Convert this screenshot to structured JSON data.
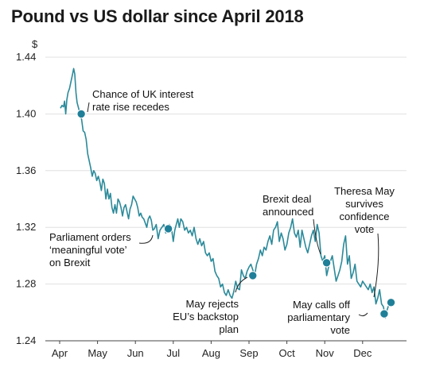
{
  "chart_data": {
    "type": "line",
    "title": "Pound vs US dollar since April 2018",
    "ylabel": "$",
    "xlabel": "",
    "ylim": [
      1.24,
      1.44
    ],
    "yticks": [
      1.44,
      1.4,
      1.36,
      1.32,
      1.28,
      1.24
    ],
    "ytick_labels": [
      "1.44",
      "1.40",
      "1.36",
      "1.32",
      "1.28",
      "1.24"
    ],
    "xtick_labels": [
      "Apr",
      "May",
      "Jun",
      "Jul",
      "Aug",
      "Sep",
      "Oct",
      "Nov",
      "Dec"
    ],
    "xtick_months": [
      0,
      1,
      2,
      3,
      4,
      5,
      6,
      7,
      8
    ],
    "grid": true,
    "line_color": "#2b8a9a",
    "marker_color": "#1f7f98",
    "series": [
      {
        "values": [
          [
            0.02,
            1.404
          ],
          [
            0.06,
            1.406
          ],
          [
            0.1,
            1.405
          ],
          [
            0.13,
            1.409
          ],
          [
            0.16,
            1.4
          ],
          [
            0.19,
            1.41
          ],
          [
            0.22,
            1.415
          ],
          [
            0.26,
            1.418
          ],
          [
            0.3,
            1.423
          ],
          [
            0.34,
            1.428
          ],
          [
            0.37,
            1.432
          ],
          [
            0.4,
            1.428
          ],
          [
            0.43,
            1.415
          ],
          [
            0.46,
            1.408
          ],
          [
            0.5,
            1.404
          ],
          [
            0.54,
            1.4
          ],
          [
            0.58,
            1.396
          ],
          [
            0.62,
            1.388
          ],
          [
            0.66,
            1.387
          ],
          [
            0.7,
            1.382
          ],
          [
            0.74,
            1.372
          ],
          [
            0.78,
            1.367
          ],
          [
            0.82,
            1.362
          ],
          [
            0.86,
            1.356
          ],
          [
            0.9,
            1.36
          ],
          [
            0.94,
            1.358
          ],
          [
            0.98,
            1.353
          ],
          [
            1.02,
            1.356
          ],
          [
            1.06,
            1.352
          ],
          [
            1.1,
            1.346
          ],
          [
            1.14,
            1.354
          ],
          [
            1.18,
            1.351
          ],
          [
            1.22,
            1.34
          ],
          [
            1.26,
            1.347
          ],
          [
            1.3,
            1.34
          ],
          [
            1.34,
            1.344
          ],
          [
            1.38,
            1.334
          ],
          [
            1.42,
            1.33
          ],
          [
            1.46,
            1.336
          ],
          [
            1.5,
            1.33
          ],
          [
            1.54,
            1.34
          ],
          [
            1.58,
            1.338
          ],
          [
            1.62,
            1.334
          ],
          [
            1.66,
            1.328
          ],
          [
            1.7,
            1.334
          ],
          [
            1.74,
            1.336
          ],
          [
            1.78,
            1.331
          ],
          [
            1.82,
            1.326
          ],
          [
            1.86,
            1.333
          ],
          [
            1.9,
            1.336
          ],
          [
            1.94,
            1.342
          ],
          [
            1.98,
            1.34
          ],
          [
            2.02,
            1.338
          ],
          [
            2.06,
            1.334
          ],
          [
            2.1,
            1.328
          ],
          [
            2.14,
            1.33
          ],
          [
            2.18,
            1.327
          ],
          [
            2.22,
            1.326
          ],
          [
            2.26,
            1.323
          ],
          [
            2.3,
            1.32
          ],
          [
            2.34,
            1.326
          ],
          [
            2.38,
            1.328
          ],
          [
            2.42,
            1.325
          ],
          [
            2.46,
            1.318
          ],
          [
            2.5,
            1.319
          ],
          [
            2.55,
            1.322
          ],
          [
            2.6,
            1.312
          ],
          [
            2.65,
            1.318
          ],
          [
            2.7,
            1.32
          ],
          [
            2.75,
            1.322
          ],
          [
            2.8,
            1.316
          ],
          [
            2.85,
            1.318
          ],
          [
            2.9,
            1.322
          ],
          [
            2.95,
            1.32
          ],
          [
            3.0,
            1.31
          ],
          [
            3.04,
            1.318
          ],
          [
            3.08,
            1.322
          ],
          [
            3.12,
            1.326
          ],
          [
            3.16,
            1.32
          ],
          [
            3.2,
            1.326
          ],
          [
            3.25,
            1.324
          ],
          [
            3.3,
            1.318
          ],
          [
            3.35,
            1.32
          ],
          [
            3.4,
            1.316
          ],
          [
            3.45,
            1.318
          ],
          [
            3.5,
            1.314
          ],
          [
            3.55,
            1.32
          ],
          [
            3.6,
            1.312
          ],
          [
            3.65,
            1.308
          ],
          [
            3.7,
            1.312
          ],
          [
            3.75,
            1.307
          ],
          [
            3.8,
            1.31
          ],
          [
            3.85,
            1.302
          ],
          [
            3.9,
            1.3
          ],
          [
            3.95,
            1.302
          ],
          [
            4.0,
            1.296
          ],
          [
            4.05,
            1.298
          ],
          [
            4.1,
            1.289
          ],
          [
            4.15,
            1.286
          ],
          [
            4.2,
            1.284
          ],
          [
            4.25,
            1.278
          ],
          [
            4.3,
            1.28
          ],
          [
            4.35,
            1.274
          ],
          [
            4.4,
            1.272
          ],
          [
            4.45,
            1.276
          ],
          [
            4.5,
            1.272
          ],
          [
            4.55,
            1.27
          ],
          [
            4.6,
            1.275
          ],
          [
            4.65,
            1.282
          ],
          [
            4.7,
            1.277
          ],
          [
            4.75,
            1.276
          ],
          [
            4.8,
            1.29
          ],
          [
            4.85,
            1.286
          ],
          [
            4.9,
            1.284
          ],
          [
            4.95,
            1.289
          ],
          [
            5.0,
            1.292
          ],
          [
            5.05,
            1.294
          ],
          [
            5.1,
            1.29
          ],
          [
            5.15,
            1.286
          ],
          [
            5.2,
            1.294
          ],
          [
            5.25,
            1.298
          ],
          [
            5.3,
            1.304
          ],
          [
            5.35,
            1.3
          ],
          [
            5.4,
            1.306
          ],
          [
            5.45,
            1.304
          ],
          [
            5.5,
            1.31
          ],
          [
            5.55,
            1.314
          ],
          [
            5.6,
            1.308
          ],
          [
            5.65,
            1.318
          ],
          [
            5.7,
            1.32
          ],
          [
            5.75,
            1.324
          ],
          [
            5.8,
            1.31
          ],
          [
            5.85,
            1.316
          ],
          [
            5.9,
            1.312
          ],
          [
            5.95,
            1.304
          ],
          [
            6.0,
            1.308
          ],
          [
            6.05,
            1.316
          ],
          [
            6.1,
            1.32
          ],
          [
            6.15,
            1.326
          ],
          [
            6.2,
            1.316
          ],
          [
            6.25,
            1.313
          ],
          [
            6.3,
            1.318
          ],
          [
            6.35,
            1.306
          ],
          [
            6.4,
            1.318
          ],
          [
            6.45,
            1.312
          ],
          [
            6.5,
            1.306
          ],
          [
            6.55,
            1.302
          ],
          [
            6.6,
            1.308
          ],
          [
            6.65,
            1.314
          ],
          [
            6.7,
            1.318
          ],
          [
            6.75,
            1.31
          ],
          [
            6.8,
            1.322
          ],
          [
            6.85,
            1.316
          ],
          [
            6.9,
            1.3
          ],
          [
            6.95,
            1.296
          ],
          [
            7.0,
            1.3
          ],
          [
            7.05,
            1.286
          ],
          [
            7.1,
            1.292
          ],
          [
            7.15,
            1.296
          ],
          [
            7.2,
            1.3
          ],
          [
            7.25,
            1.291
          ],
          [
            7.3,
            1.282
          ],
          [
            7.35,
            1.286
          ],
          [
            7.4,
            1.29
          ],
          [
            7.45,
            1.296
          ],
          [
            7.5,
            1.308
          ],
          [
            7.55,
            1.314
          ],
          [
            7.6,
            1.294
          ],
          [
            7.65,
            1.3
          ],
          [
            7.7,
            1.284
          ],
          [
            7.75,
            1.288
          ],
          [
            7.8,
            1.294
          ],
          [
            7.85,
            1.282
          ],
          [
            7.9,
            1.28
          ],
          [
            7.95,
            1.278
          ],
          [
            8.0,
            1.282
          ],
          [
            8.05,
            1.28
          ],
          [
            8.1,
            1.278
          ],
          [
            8.15,
            1.276
          ],
          [
            8.2,
            1.28
          ],
          [
            8.25,
            1.274
          ],
          [
            8.3,
            1.278
          ],
          [
            8.35,
            1.266
          ],
          [
            8.4,
            1.27
          ],
          [
            8.45,
            1.276
          ],
          [
            8.5,
            1.266
          ],
          [
            8.55,
            1.264
          ],
          [
            8.6,
            1.256
          ],
          [
            8.65,
            1.262
          ],
          [
            8.7,
            1.266
          ],
          [
            8.75,
            1.267
          ]
        ]
      }
    ],
    "annotations": [
      {
        "text": [
          "Chance of UK interest",
          "rate rise recedes"
        ],
        "point": [
          0.57,
          1.4
        ],
        "anchor": "start"
      },
      {
        "text": [
          "Parliament orders",
          "‘meaningful vote’",
          "on Brexit"
        ],
        "point": [
          2.87,
          1.319
        ],
        "anchor": "start"
      },
      {
        "text": [
          "May rejects",
          "EU’s backstop",
          "plan"
        ],
        "point": [
          5.1,
          1.286
        ],
        "anchor": "end"
      },
      {
        "text": [
          "Brexit deal",
          "announced"
        ],
        "point": [
          7.05,
          1.295
        ],
        "anchor": "start"
      },
      {
        "text": [
          "Theresa May",
          "survives",
          "confidence",
          "vote"
        ],
        "point": [
          8.75,
          1.267
        ],
        "anchor": "middle"
      },
      {
        "text": [
          "May calls off",
          "parliamentary",
          "vote"
        ],
        "point": [
          8.57,
          1.259
        ],
        "anchor": "end"
      }
    ]
  }
}
